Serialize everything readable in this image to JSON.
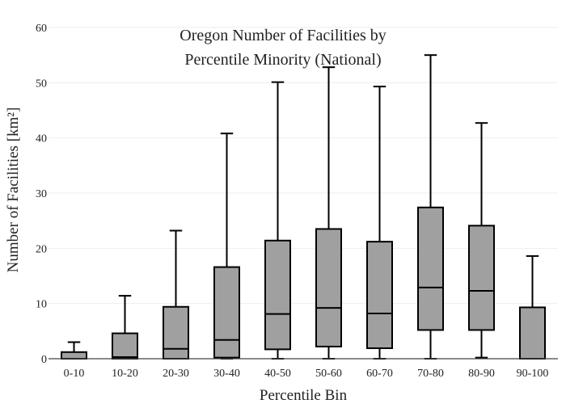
{
  "chart_data": {
    "type": "box",
    "title_lines": [
      "Oregon Number of Facilities by",
      "Percentile Minority (National)"
    ],
    "xlabel": "Percentile Bin",
    "ylabel": "Number of Facilities  [km²]",
    "ylim": [
      0,
      60
    ],
    "yticks": [
      0,
      10,
      20,
      30,
      40,
      50,
      60
    ],
    "grid": true,
    "legend": "none",
    "categories": [
      "0-10",
      "10-20",
      "20-30",
      "30-40",
      "40-50",
      "50-60",
      "60-70",
      "70-80",
      "80-90",
      "90-100"
    ],
    "boxes": [
      {
        "min": 0.0,
        "q1": 0.0,
        "median": 0.0,
        "q3": 1.2,
        "max": 3.0
      },
      {
        "min": 0.0,
        "q1": 0.0,
        "median": 0.3,
        "q3": 4.6,
        "max": 11.4
      },
      {
        "min": 0.0,
        "q1": 0.0,
        "median": 1.8,
        "q3": 9.4,
        "max": 23.2
      },
      {
        "min": 0.0,
        "q1": 0.2,
        "median": 3.4,
        "q3": 16.6,
        "max": 40.8
      },
      {
        "min": 0.0,
        "q1": 1.7,
        "median": 8.1,
        "q3": 21.4,
        "max": 50.1
      },
      {
        "min": 0.0,
        "q1": 2.2,
        "median": 9.2,
        "q3": 23.5,
        "max": 52.8
      },
      {
        "min": 0.0,
        "q1": 1.9,
        "median": 8.2,
        "q3": 21.2,
        "max": 49.3
      },
      {
        "min": 0.0,
        "q1": 5.2,
        "median": 12.9,
        "q3": 27.4,
        "max": 55.0
      },
      {
        "min": 0.2,
        "q1": 5.2,
        "median": 12.3,
        "q3": 24.1,
        "max": 42.7
      },
      {
        "min": 0.0,
        "q1": 0.0,
        "median": 0.0,
        "q3": 9.3,
        "max": 18.6
      }
    ],
    "colors": {
      "box_fill": "#a0a0a0",
      "box_stroke": "#000000",
      "grid": "#eeeeee",
      "axis": "#444444",
      "text": "#222222"
    }
  }
}
